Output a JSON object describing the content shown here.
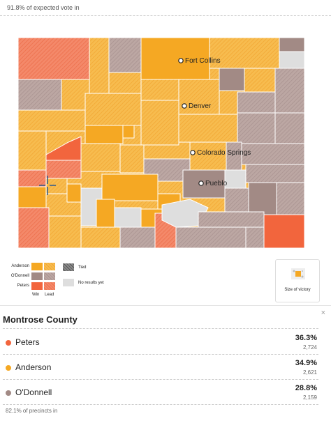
{
  "header": {
    "expected_vote": "91.8% of expected vote in"
  },
  "map": {
    "cities": [
      {
        "name": "Fort Collins"
      },
      {
        "name": "Denver"
      },
      {
        "name": "Colorado Springs"
      },
      {
        "name": "Pueblo"
      }
    ],
    "colors": {
      "anderson_win": "#f5a823",
      "anderson_lead": "#f7bc4f",
      "odonnell_win": "#a28a85",
      "odonnell_lead": "#bca7a3",
      "peters_win": "#f2653d",
      "peters_lead": "#f4896a",
      "no_results": "#dedede"
    }
  },
  "legend": {
    "candidates": [
      "Anderson",
      "O'Donnell",
      "Peters"
    ],
    "win_label": "Win",
    "lead_label": "Lead",
    "tied_label": "Tied",
    "no_results_label": "No results yet"
  },
  "size_of_victory": {
    "label": "Size of victory"
  },
  "county_panel": {
    "county": "Montrose County",
    "close_glyph": "×",
    "results": [
      {
        "candidate": "Peters",
        "pct": "36.3%",
        "votes": "2,724",
        "color": "#f2653d"
      },
      {
        "candidate": "Anderson",
        "pct": "34.9%",
        "votes": "2,621",
        "color": "#f5a823"
      },
      {
        "candidate": "O'Donnell",
        "pct": "28.8%",
        "votes": "2,159",
        "color": "#a28a85"
      }
    ],
    "precincts": "82.1% of precincts in"
  }
}
